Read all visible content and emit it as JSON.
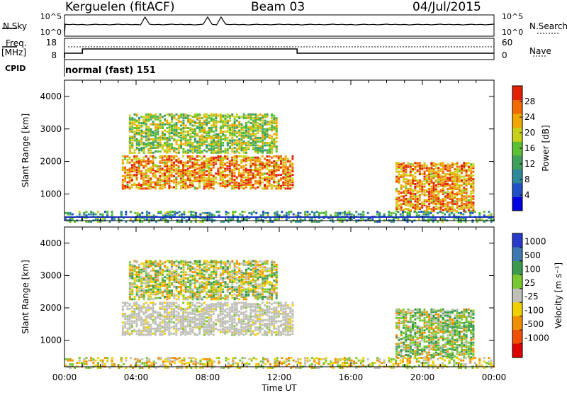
{
  "header": {
    "station": "Kerguelen (fitACF)",
    "beam": "Beam 03",
    "date": "04/Jul/2015"
  },
  "strip": {
    "nsky_label": "N.Sky",
    "nsky_ticks": [
      "10^5",
      "10^0"
    ],
    "nsearch_label": "N.Search",
    "nsearch_ticks": [
      "10^5",
      "10^0"
    ],
    "freq_label_1": "Freq.",
    "freq_label_2": "[MHz]",
    "freq_ticks": [
      "18",
      "8"
    ],
    "nave_label": "Nave",
    "nave_ticks": [
      "60",
      "0"
    ],
    "cpid_label": "CPID",
    "cpid_value": "normal (fast) 151"
  },
  "chart_data": [
    {
      "type": "heatmap",
      "panel": "power",
      "xlabel": "",
      "ylabel": "Slant Range [km]",
      "x_unit": "hours UT",
      "xlim": [
        0,
        24
      ],
      "ylim": [
        180,
        4500
      ],
      "yticks": [
        1000,
        2000,
        3000,
        4000
      ],
      "colorbar": {
        "label": "Power [dB]",
        "range": [
          0,
          32
        ],
        "ticks": [
          "4",
          "8",
          "12",
          "16",
          "20",
          "24",
          "28"
        ],
        "colors": [
          "#0000e0",
          "#2050c8",
          "#2e8a9a",
          "#3fa05a",
          "#5cc030",
          "#c8d018",
          "#f0a800",
          "#f06a00",
          "#e02000"
        ]
      },
      "echo_regions": [
        {
          "t": [
            3.2,
            12.7
          ],
          "range_km": [
            1200,
            2200
          ],
          "level": "high"
        },
        {
          "t": [
            3.6,
            11.8
          ],
          "range_km": [
            2300,
            3500
          ],
          "level": "medium"
        },
        {
          "t": [
            18.5,
            22.8
          ],
          "range_km": [
            500,
            2000
          ],
          "level": "high"
        },
        {
          "t": [
            0,
            24
          ],
          "range_km": [
            180,
            500
          ],
          "level": "low"
        }
      ]
    },
    {
      "type": "heatmap",
      "panel": "velocity",
      "xlabel": "Time UT",
      "ylabel": "Slant Range [km]",
      "x_unit": "hours UT",
      "xlim": [
        0,
        24
      ],
      "ylim": [
        180,
        4500
      ],
      "yticks": [
        1000,
        2000,
        3000,
        4000
      ],
      "xticks": [
        "00:00",
        "04:00",
        "08:00",
        "12:00",
        "16:00",
        "20:00",
        "00:00"
      ],
      "colorbar": {
        "label": "Velocity [m s⁻¹]",
        "ticks": [
          "1000",
          "500",
          "100",
          "25",
          "-25",
          "-100",
          "-500",
          "-1000"
        ],
        "colors": [
          "#2838c8",
          "#3e78b0",
          "#3a9a50",
          "#7ac830",
          "#c0c0b8",
          "#f0d000",
          "#f09000",
          "#f05000",
          "#e00000"
        ]
      },
      "echo_regions": [
        {
          "t": [
            3.2,
            12.7
          ],
          "range_km": [
            1200,
            2200
          ],
          "velocity": "near zero"
        },
        {
          "t": [
            3.6,
            11.8
          ],
          "range_km": [
            2300,
            3500
          ],
          "velocity": "mixed"
        },
        {
          "t": [
            18.5,
            22.8
          ],
          "range_km": [
            500,
            2000
          ],
          "velocity": "positive"
        }
      ]
    }
  ]
}
